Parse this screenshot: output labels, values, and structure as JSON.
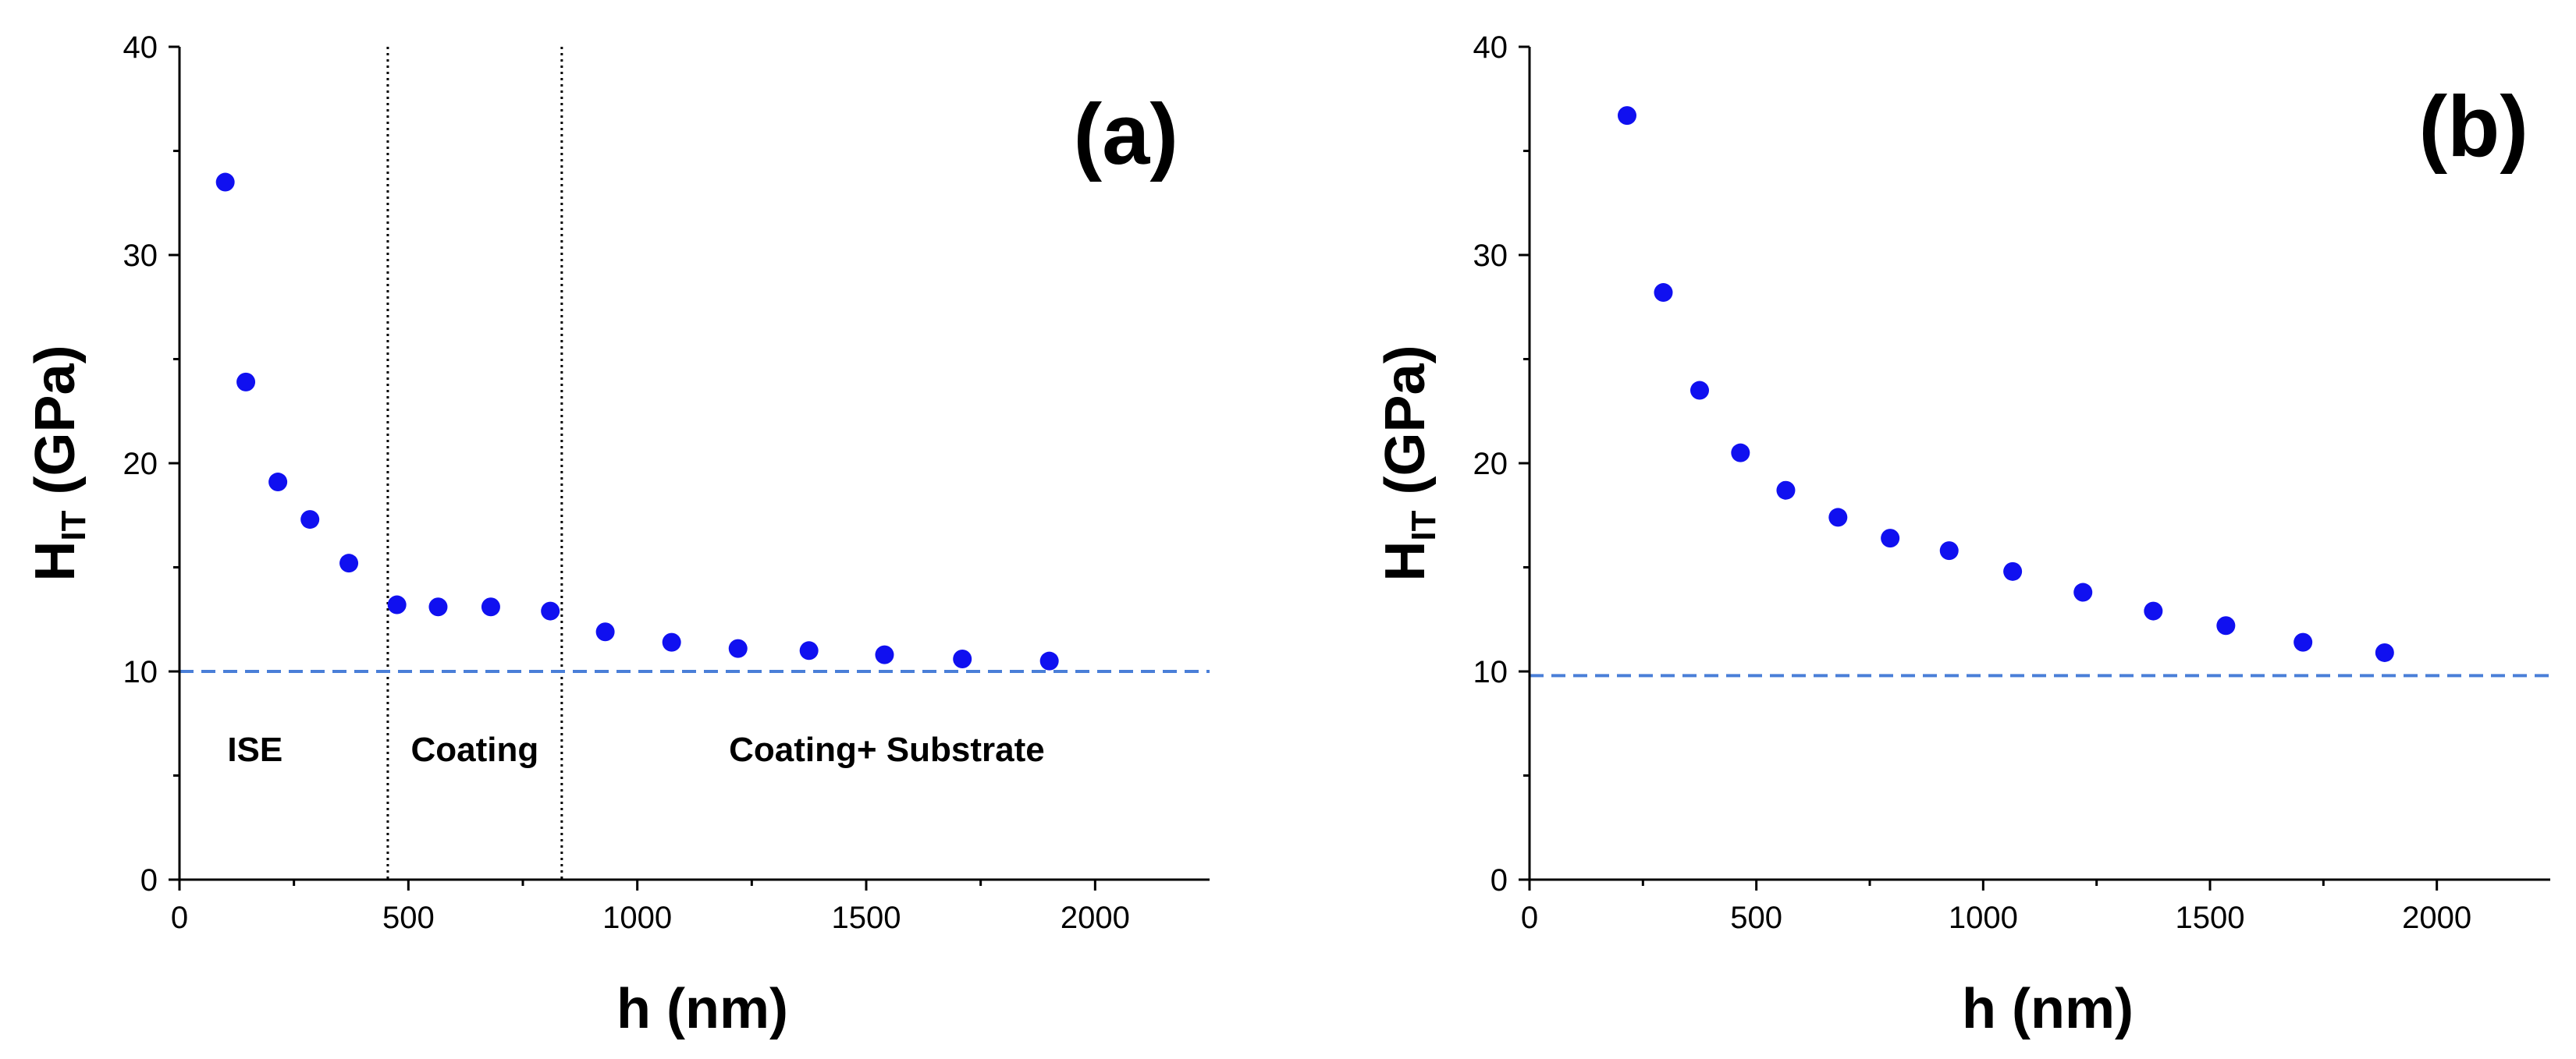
{
  "chart_data": [
    {
      "type": "scatter",
      "panel_label": "(a)",
      "xlabel": "h (nm)",
      "ylabel_main": "H",
      "ylabel_sub": "IT",
      "ylabel_unit": "(GPa)",
      "xlim": [
        0,
        2250
      ],
      "ylim": [
        0,
        40
      ],
      "xticks": [
        0,
        500,
        1000,
        1500,
        2000
      ],
      "yticks": [
        0,
        10,
        20,
        30,
        40
      ],
      "x": [
        100,
        145,
        215,
        285,
        370,
        475,
        565,
        680,
        810,
        930,
        1075,
        1220,
        1375,
        1540,
        1710,
        1900
      ],
      "y": [
        33.5,
        23.9,
        19.1,
        17.3,
        15.2,
        13.2,
        13.1,
        13.1,
        12.9,
        11.9,
        11.4,
        11.1,
        11.0,
        10.8,
        10.6,
        10.5
      ],
      "reference_line": {
        "y": 10,
        "style": "dashed",
        "color": "#4a7fd8"
      },
      "region_dividers": [
        455,
        835
      ],
      "regions": [
        {
          "label": "ISE",
          "x": 165
        },
        {
          "label": "Coating",
          "x": 645
        },
        {
          "label": "Coating+ Substrate",
          "x": 1545
        }
      ],
      "marker_color": "#1010f0"
    },
    {
      "type": "scatter",
      "panel_label": "(b)",
      "xlabel": "h (nm)",
      "ylabel_main": "H",
      "ylabel_sub": "IT",
      "ylabel_unit": "(GPa)",
      "xlim": [
        0,
        2250
      ],
      "ylim": [
        0,
        40
      ],
      "xticks": [
        0,
        500,
        1000,
        1500,
        2000
      ],
      "yticks": [
        0,
        10,
        20,
        30,
        40
      ],
      "x": [
        215,
        295,
        375,
        465,
        565,
        680,
        795,
        925,
        1065,
        1220,
        1375,
        1535,
        1705,
        1885
      ],
      "y": [
        36.7,
        28.2,
        23.5,
        20.5,
        18.7,
        17.4,
        16.4,
        15.8,
        14.8,
        13.8,
        12.9,
        12.2,
        11.4,
        10.9
      ],
      "reference_line": {
        "y": 9.8,
        "style": "dashed",
        "color": "#4a7fd8"
      },
      "marker_color": "#1010f0"
    }
  ]
}
